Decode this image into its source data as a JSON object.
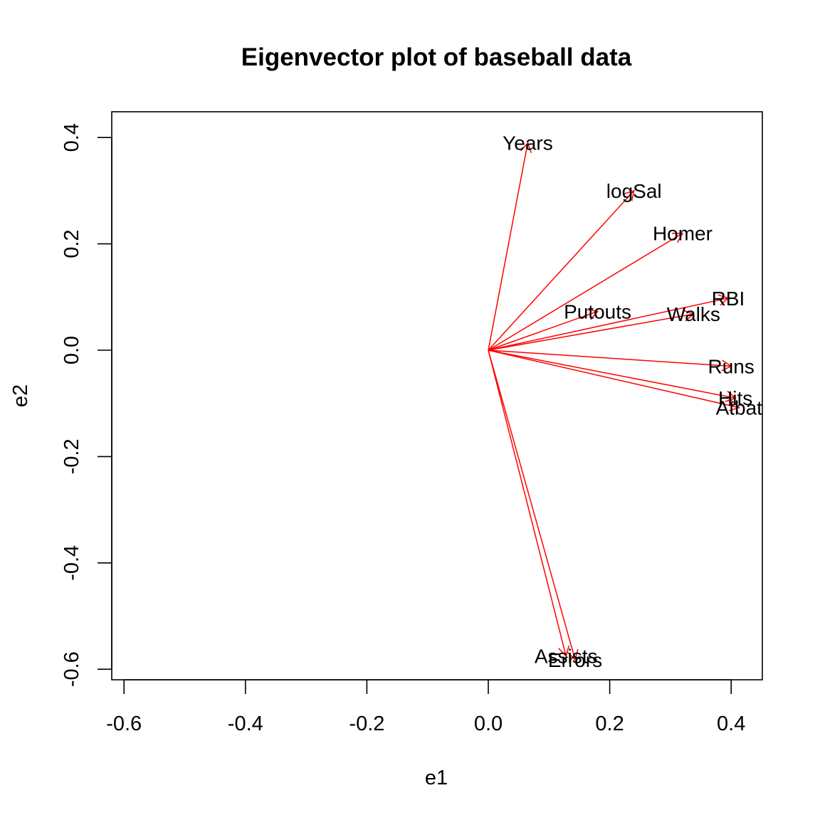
{
  "chart_data": {
    "type": "scatter",
    "title": "Eigenvector plot of baseball data",
    "xlabel": "e1",
    "ylabel": "e2",
    "xlim": [
      -0.62,
      0.45
    ],
    "ylim": [
      -0.62,
      0.45
    ],
    "xticks": [
      -0.6,
      -0.4,
      -0.2,
      0.0,
      0.2,
      0.4
    ],
    "yticks": [
      -0.6,
      -0.4,
      -0.2,
      0.0,
      0.2,
      0.4
    ],
    "xtick_labels": [
      "-0.6",
      "-0.4",
      "-0.2",
      "0.0",
      "0.2",
      "0.4"
    ],
    "ytick_labels": [
      "-0.6",
      "-0.4",
      "-0.2",
      "0.0",
      "0.2",
      "0.4"
    ],
    "grid": false,
    "arrow_color": "#ff0000",
    "origin": [
      0,
      0
    ],
    "vectors": [
      {
        "label": "Years",
        "x": 0.065,
        "y": 0.39
      },
      {
        "label": "logSal",
        "x": 0.24,
        "y": 0.3
      },
      {
        "label": "Homer",
        "x": 0.32,
        "y": 0.22
      },
      {
        "label": "RBI",
        "x": 0.395,
        "y": 0.098
      },
      {
        "label": "Putouts",
        "x": 0.18,
        "y": 0.073
      },
      {
        "label": "Walks",
        "x": 0.338,
        "y": 0.068
      },
      {
        "label": "Runs",
        "x": 0.4,
        "y": -0.03
      },
      {
        "label": "Hits",
        "x": 0.407,
        "y": -0.09
      },
      {
        "label": "Atbat",
        "x": 0.413,
        "y": -0.108
      },
      {
        "label": "Assists",
        "x": 0.128,
        "y": -0.575
      },
      {
        "label": "Errors",
        "x": 0.143,
        "y": -0.582
      }
    ]
  }
}
